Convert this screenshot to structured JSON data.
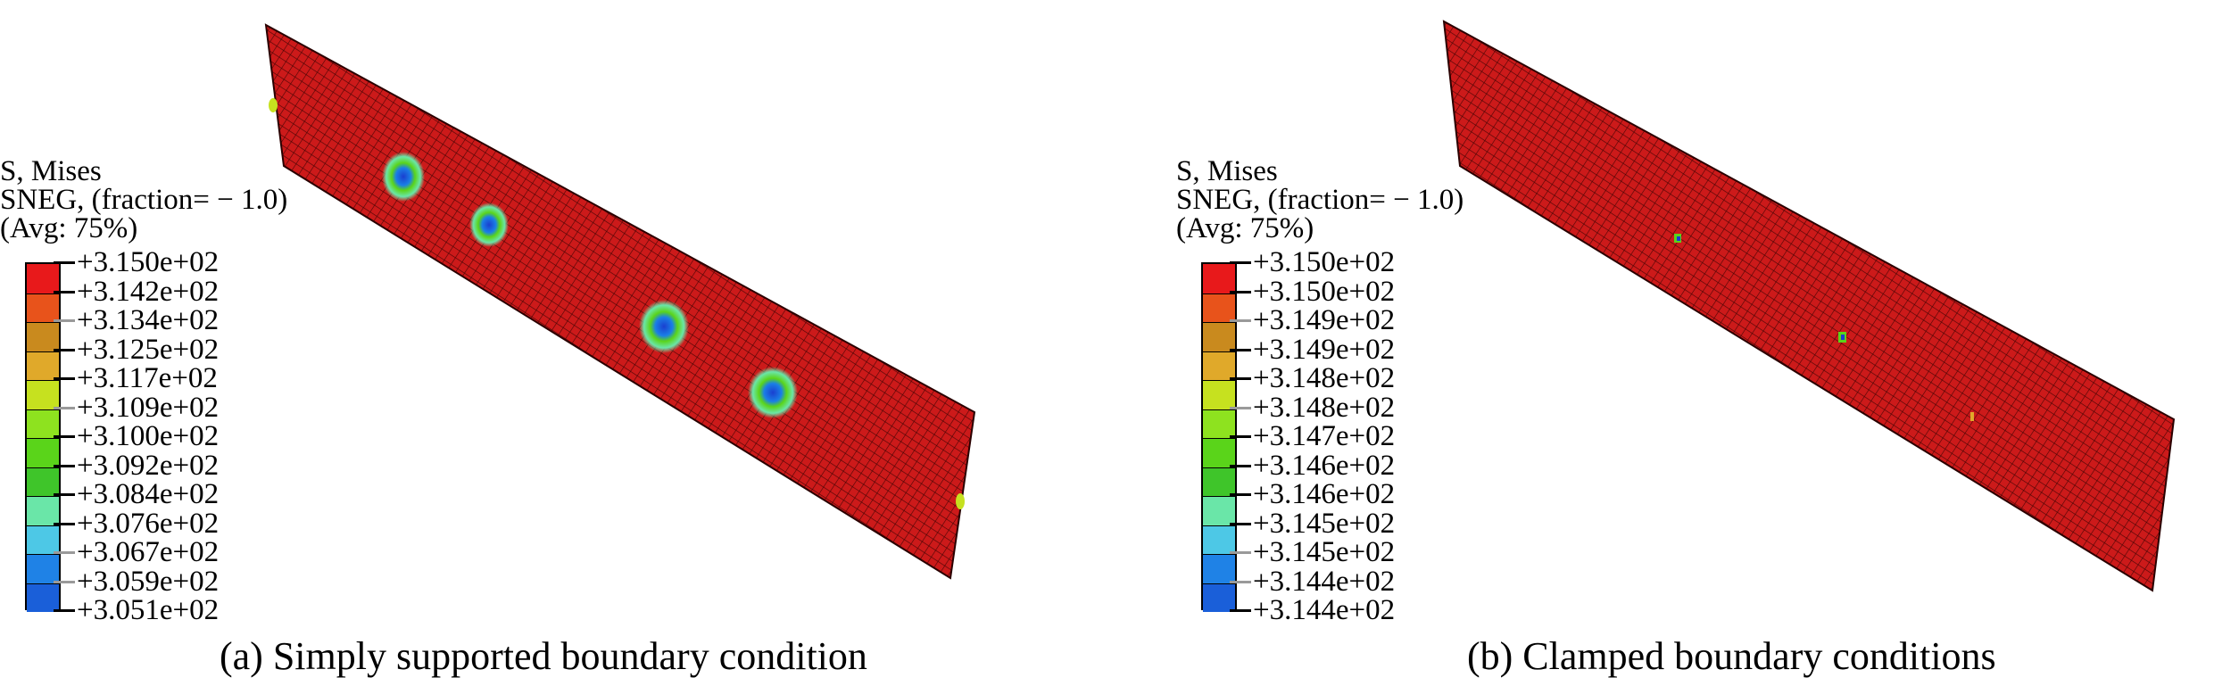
{
  "panels": [
    {
      "legend": {
        "line1": "S, Mises",
        "line2": "SNEG, (fraction= − 1.0)",
        "line3": "(Avg: 75%)",
        "values": [
          "+3.150e+02",
          "+3.142e+02",
          "+3.134e+02",
          "+3.125e+02",
          "+3.117e+02",
          "+3.109e+02",
          "+3.100e+02",
          "+3.092e+02",
          "+3.084e+02",
          "+3.076e+02",
          "+3.067e+02",
          "+3.059e+02",
          "+3.051e+02"
        ]
      },
      "caption": "(a) Simply supported boundary condition"
    },
    {
      "legend": {
        "line1": "S, Mises",
        "line2": "SNEG, (fraction= − 1.0)",
        "line3": "(Avg: 75%)",
        "values": [
          "+3.150e+02",
          "+3.150e+02",
          "+3.149e+02",
          "+3.149e+02",
          "+3.148e+02",
          "+3.148e+02",
          "+3.147e+02",
          "+3.146e+02",
          "+3.146e+02",
          "+3.145e+02",
          "+3.145e+02",
          "+3.144e+02",
          "+3.144e+02"
        ]
      },
      "caption": "(b) Clamped boundary conditions"
    }
  ],
  "colors": {
    "contour": [
      "#e8191b",
      "#e8531b",
      "#c98a1e",
      "#e0a92a",
      "#c6e11f",
      "#8ee21f",
      "#5ad41a",
      "#3fc52a",
      "#6ae6a8",
      "#4dc8e6",
      "#1f82e6",
      "#1a5fd9",
      "#1236c8"
    ],
    "plate_fill": "#cc1a1a",
    "mesh_line": "#4a0505"
  }
}
